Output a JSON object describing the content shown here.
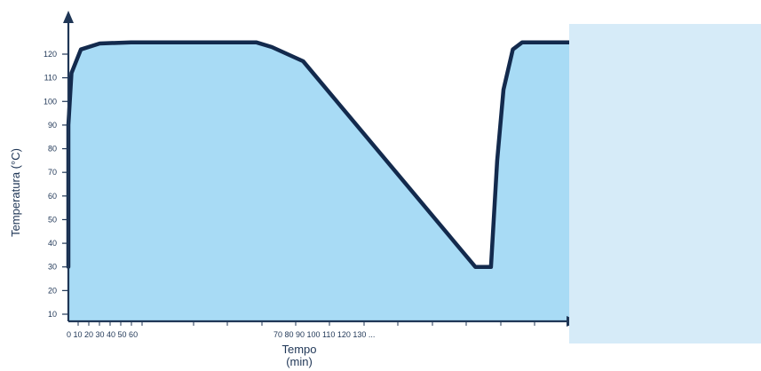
{
  "chart_data": {
    "type": "area",
    "xlabel_line1": "Tempo",
    "xlabel_line2": "(min)",
    "ylabel": "Temperatura (°C)",
    "yticks": [
      10,
      20,
      30,
      40,
      50,
      60,
      70,
      80,
      90,
      100,
      110,
      120
    ],
    "xtick_labels_left": "0 10 20 30 40 50 60",
    "xtick_labels_right": "70 80 90 100 110 120 130 ...",
    "series": [
      {
        "points": [
          [
            0,
            30
          ],
          [
            0,
            90
          ],
          [
            1,
            112
          ],
          [
            4,
            122
          ],
          [
            10,
            124.5
          ],
          [
            20,
            125
          ],
          [
            50,
            125
          ],
          [
            60,
            125
          ],
          [
            65,
            123
          ],
          [
            75,
            117
          ],
          [
            130,
            30
          ],
          [
            135,
            30
          ],
          [
            137,
            75
          ],
          [
            139,
            105
          ],
          [
            142,
            122
          ],
          [
            145,
            125
          ],
          [
            160,
            125
          ]
        ]
      }
    ],
    "ylim": [
      5,
      130
    ],
    "colors": {
      "fill": "#a8dbf5",
      "line": "#132a4d",
      "axis": "#1f3656",
      "overlay": "#d6ebf8"
    }
  }
}
